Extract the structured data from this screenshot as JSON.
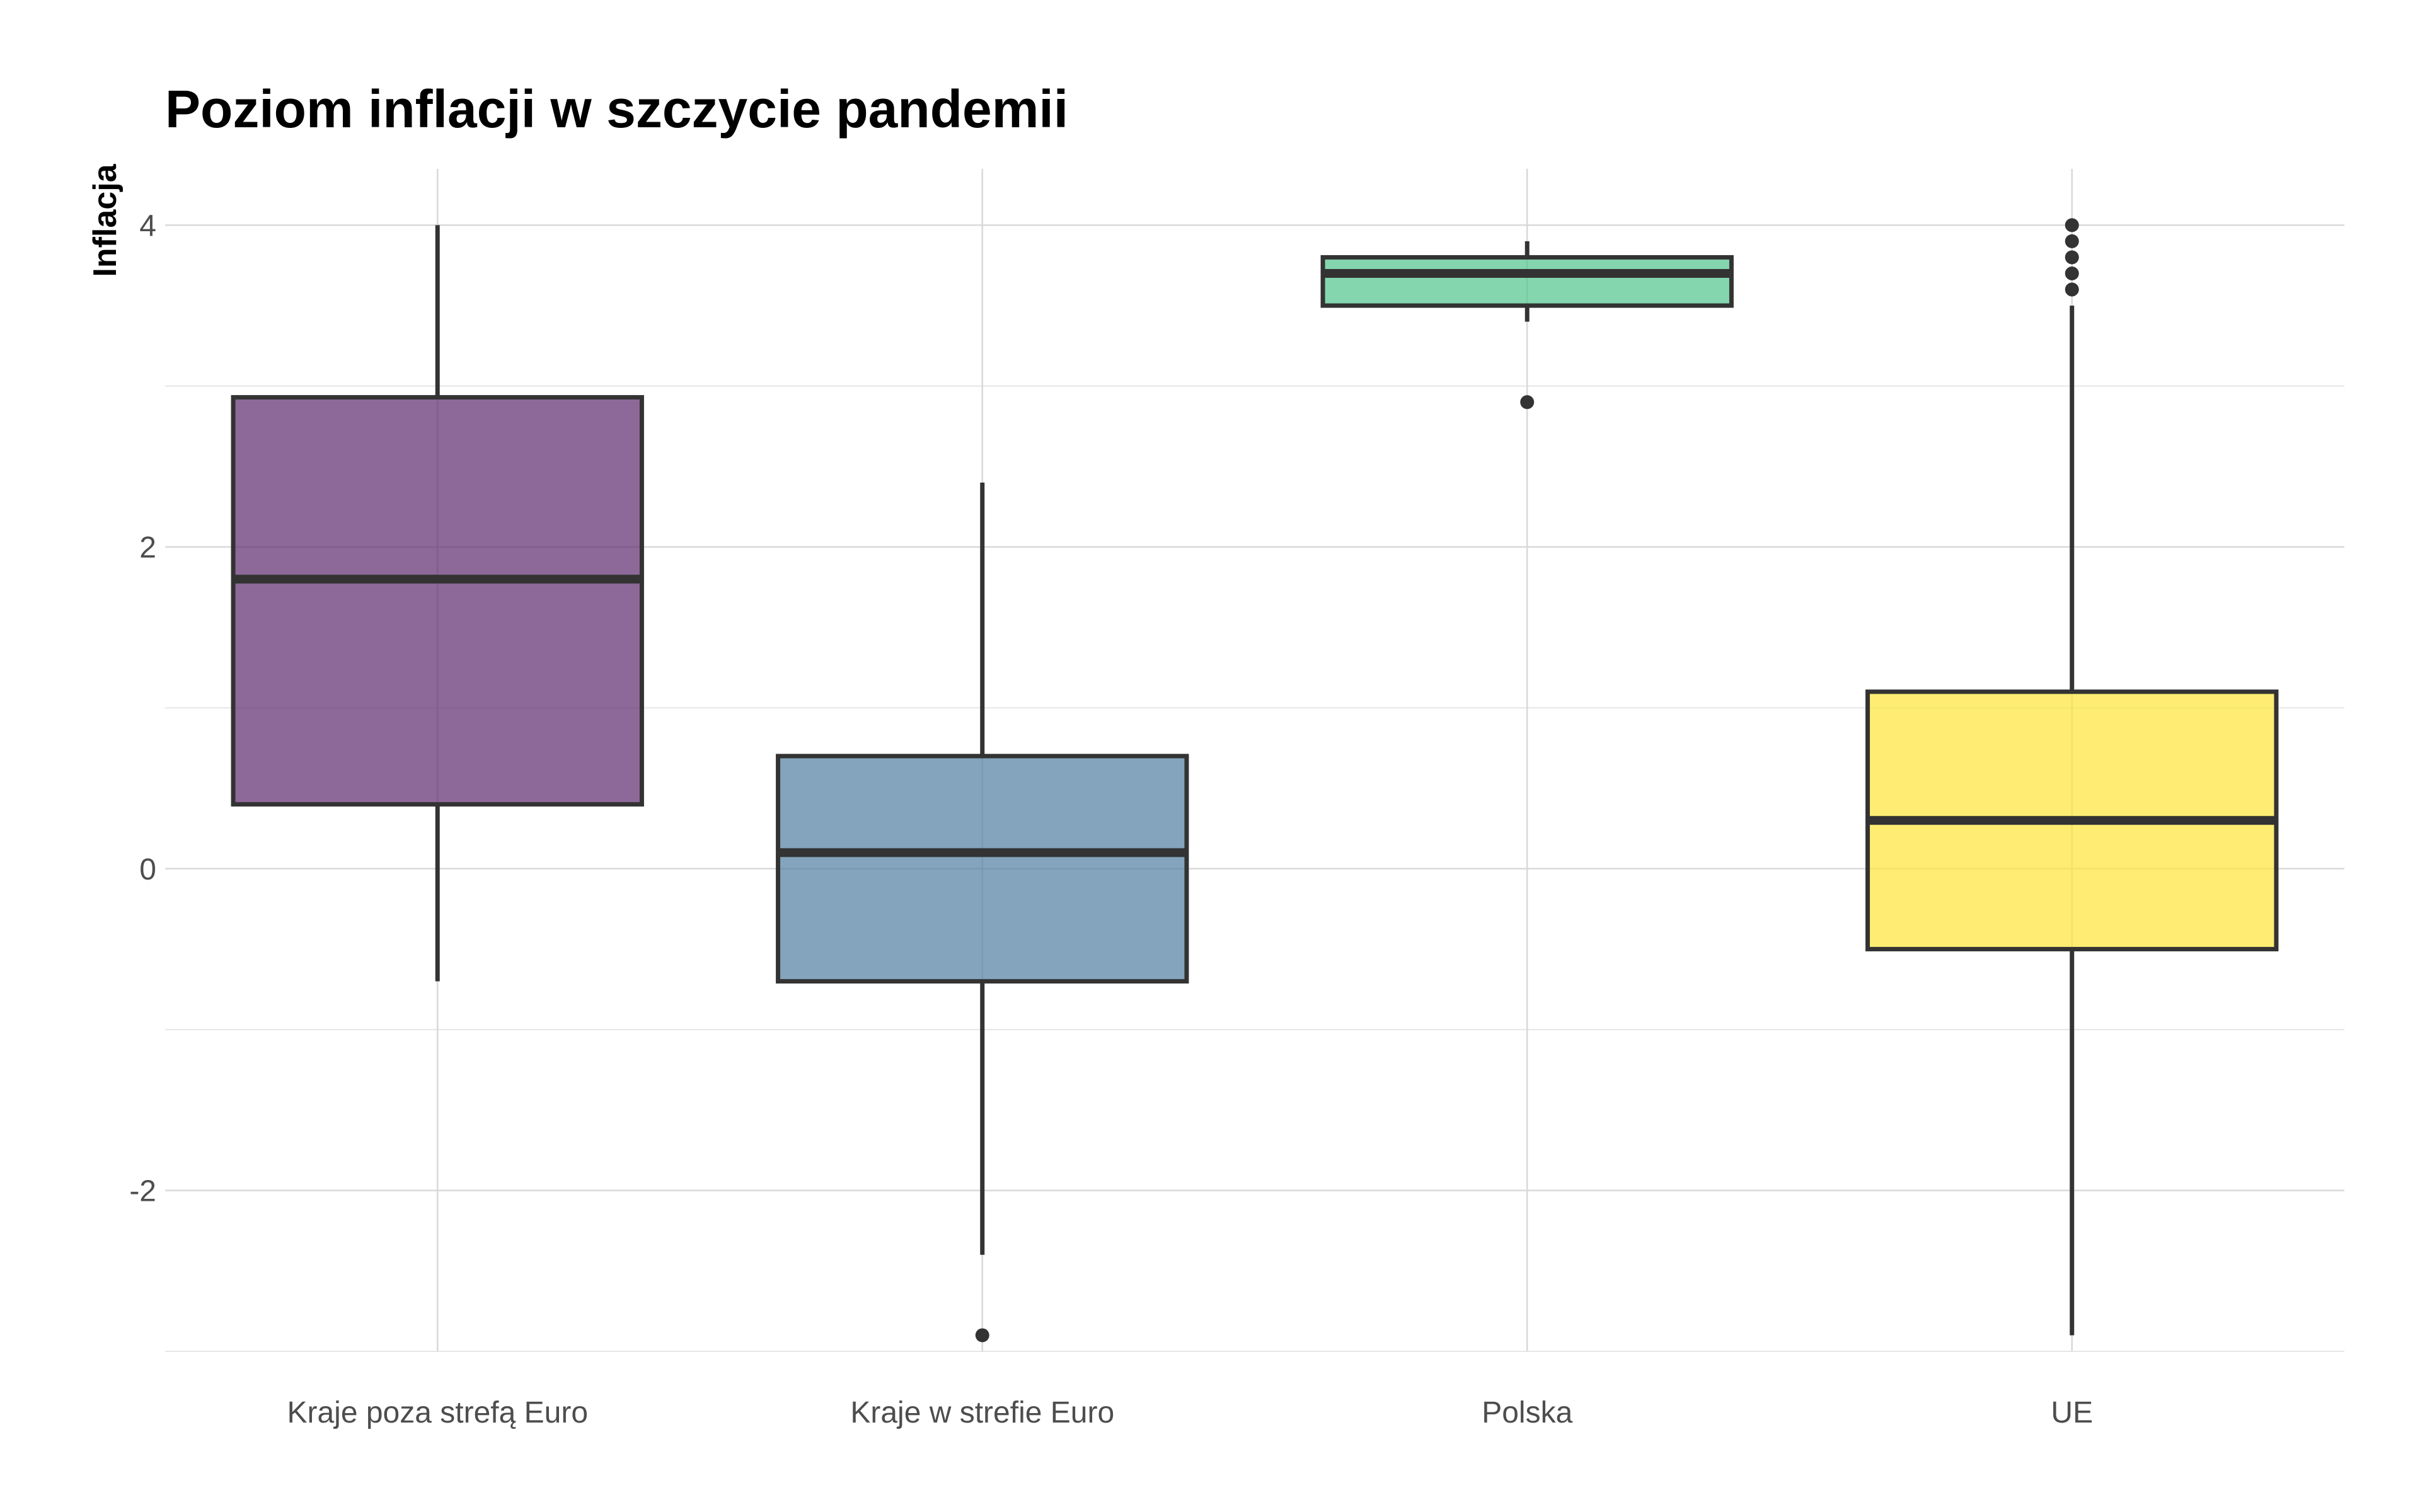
{
  "chart_data": {
    "type": "box",
    "title": "Poziom inflacji w szczycie pandemii",
    "xlabel": "",
    "ylabel": "Inflacja",
    "ylim": [
      -3.0,
      4.35
    ],
    "yticks": [
      -2,
      0,
      2,
      4
    ],
    "grid": true,
    "legend": "none",
    "categories": [
      "Kraje poza strefą Euro",
      "Kraje w strefie Euro",
      "Polska",
      "UE"
    ],
    "boxes": [
      {
        "category": "Kraje poza strefą Euro",
        "whisker_low": -0.7,
        "q1": 0.4,
        "median": 1.8,
        "q3": 2.93,
        "whisker_high": 4.0,
        "outliers": [],
        "color": "#5c2a6e"
      },
      {
        "category": "Kraje w strefie Euro",
        "whisker_low": -2.4,
        "q1": -0.7,
        "median": 0.1,
        "q3": 0.7,
        "whisker_high": 2.4,
        "outliers": [
          -2.9
        ],
        "color": "#4f7ea0"
      },
      {
        "category": "Polska",
        "whisker_low": 3.4,
        "q1": 3.5,
        "median": 3.7,
        "q3": 3.8,
        "whisker_high": 3.9,
        "outliers": [
          2.9
        ],
        "color": "#4ec58a"
      },
      {
        "category": "UE",
        "whisker_low": -2.9,
        "q1": -0.5,
        "median": 0.3,
        "q3": 1.1,
        "whisker_high": 3.5,
        "outliers": [
          3.6,
          3.7,
          3.8,
          3.9,
          4.0
        ],
        "color": "#fde636"
      }
    ]
  }
}
